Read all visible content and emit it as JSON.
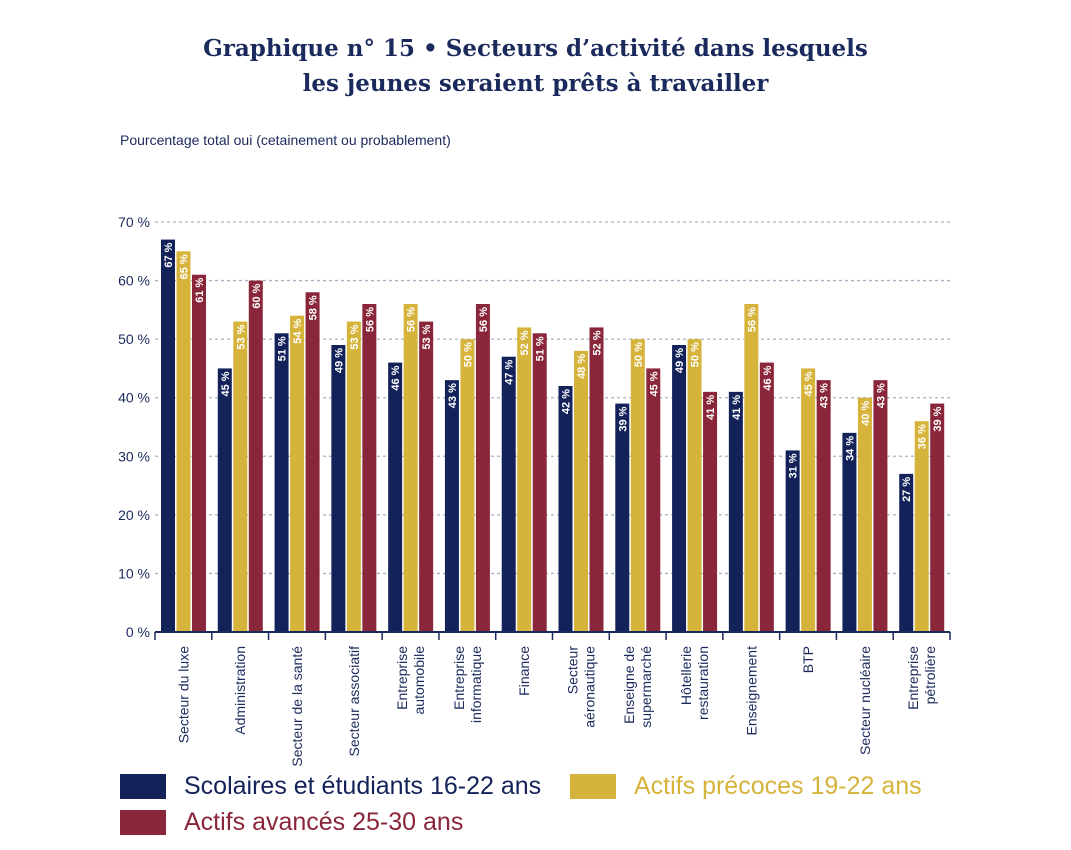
{
  "chart_data": {
    "type": "bar",
    "title": "Graphique n° 15 • Secteurs d’activité dans lesquels les jeunes seraient prêts à travailler",
    "title_lines": [
      "Graphique n° 15 • Secteurs d’activité dans lesquels",
      "les jeunes seraient prêts à travailler"
    ],
    "ylabel": "Pourcentage total oui (cetainement ou probablement)",
    "ylim": [
      0,
      70
    ],
    "yticks": [
      0,
      10,
      20,
      30,
      40,
      50,
      60,
      70
    ],
    "ytick_labels": [
      "0 %",
      "10 %",
      "20 %",
      "30 %",
      "40 %",
      "50 %",
      "60 %",
      "70 %"
    ],
    "grid": true,
    "legend": "bottom",
    "categories": [
      [
        "Secteur du luxe"
      ],
      [
        "Administration"
      ],
      [
        "Secteur de la santé"
      ],
      [
        "Secteur associatif"
      ],
      [
        "Entreprise",
        "automobile"
      ],
      [
        "Entreprise",
        "informatique"
      ],
      [
        "Finance"
      ],
      [
        "Secteur",
        "aéronautique"
      ],
      [
        "Enseigne de",
        "supermarché"
      ],
      [
        "Hôtellerie",
        "restauration"
      ],
      [
        "Enseignement"
      ],
      [
        "BTP"
      ],
      [
        "Secteur nucléaire"
      ],
      [
        "Entreprise",
        "pétrolière"
      ]
    ],
    "series": [
      {
        "name": "Scolaires et étudiants 16-22 ans",
        "color": "#14225a",
        "text_color": "#14225a",
        "values": [
          67,
          45,
          51,
          49,
          46,
          43,
          47,
          42,
          39,
          49,
          41,
          31,
          34,
          27
        ]
      },
      {
        "name": "Actifs précoces 19-22 ans",
        "color": "#d6b33a",
        "text_color": "#d6b33a",
        "values": [
          65,
          53,
          54,
          53,
          56,
          50,
          52,
          48,
          50,
          50,
          56,
          45,
          40,
          36
        ]
      },
      {
        "name": "Actifs avancés 25-30 ans",
        "color": "#8a263a",
        "text_color": "#8a263a",
        "values": [
          61,
          60,
          58,
          56,
          53,
          56,
          51,
          52,
          45,
          41,
          46,
          43,
          43,
          39
        ]
      }
    ],
    "value_suffix": " %"
  }
}
